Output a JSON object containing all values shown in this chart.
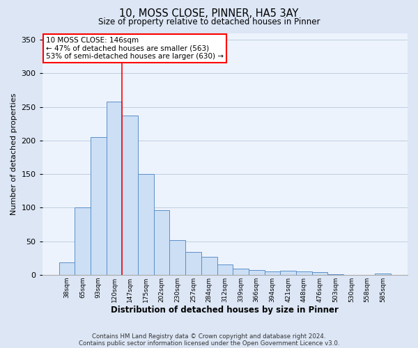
{
  "title1": "10, MOSS CLOSE, PINNER, HA5 3AY",
  "title2": "Size of property relative to detached houses in Pinner",
  "xlabel": "Distribution of detached houses by size in Pinner",
  "ylabel": "Number of detached properties",
  "bar_labels": [
    "38sqm",
    "65sqm",
    "93sqm",
    "120sqm",
    "147sqm",
    "175sqm",
    "202sqm",
    "230sqm",
    "257sqm",
    "284sqm",
    "312sqm",
    "339sqm",
    "366sqm",
    "394sqm",
    "421sqm",
    "448sqm",
    "476sqm",
    "503sqm",
    "530sqm",
    "558sqm",
    "585sqm"
  ],
  "bar_values": [
    18,
    100,
    205,
    258,
    237,
    150,
    96,
    52,
    34,
    27,
    15,
    9,
    7,
    5,
    6,
    5,
    4,
    1,
    0,
    0,
    2
  ],
  "bar_color": "#ccdff5",
  "bar_edge_color": "#5b8fc9",
  "ylim": [
    0,
    360
  ],
  "yticks": [
    0,
    50,
    100,
    150,
    200,
    250,
    300,
    350
  ],
  "property_line_bar_index": 4,
  "annotation_line1": "10 MOSS CLOSE: 146sqm",
  "annotation_line2": "← 47% of detached houses are smaller (563)",
  "annotation_line3": "53% of semi-detached houses are larger (630) →",
  "footer1": "Contains HM Land Registry data © Crown copyright and database right 2024.",
  "footer2": "Contains public sector information licensed under the Open Government Licence v3.0.",
  "bg_color": "#dce6f5",
  "plot_bg_color": "#edf3fc"
}
